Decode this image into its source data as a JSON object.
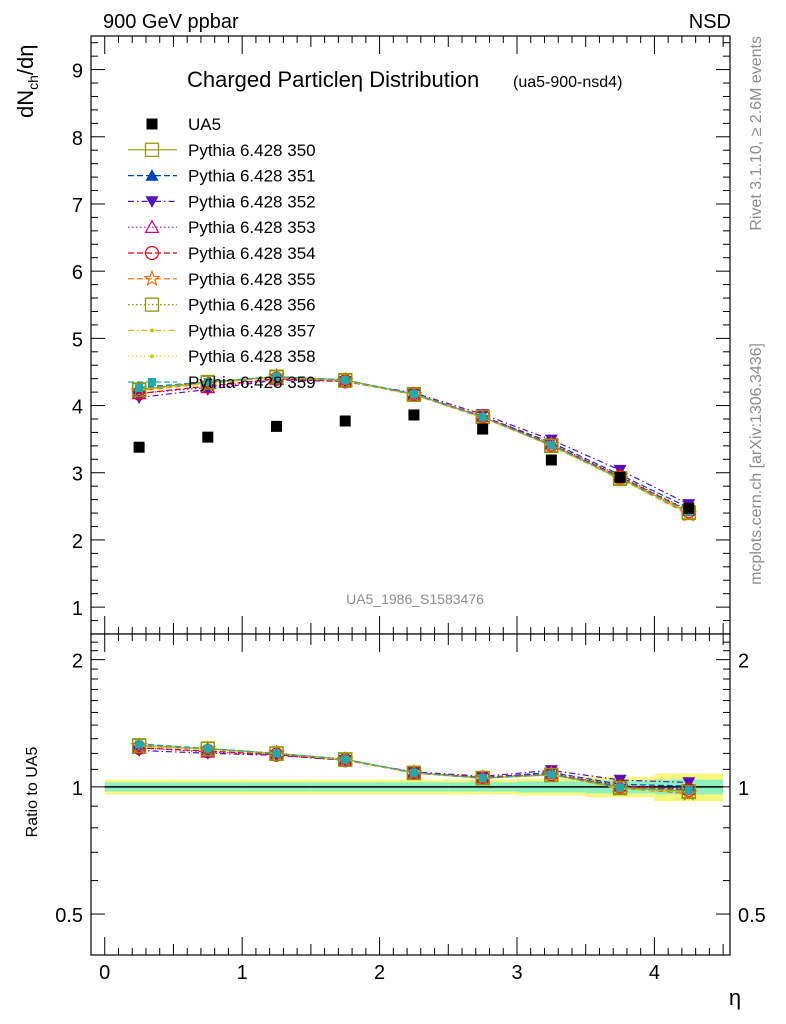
{
  "header": {
    "left": "900 GeV ppbar",
    "right": "NSD"
  },
  "side": {
    "rivet": "Rivet 3.1.10, ≥ 2.6M events",
    "mcplots": "mcplots.cern.ch [arXiv:1306.3436]"
  },
  "title": {
    "main": "Charged Particleη Distribution",
    "sub": "(ua5-900-nsd4)"
  },
  "analysis_id": "UA5_1986_S1583476",
  "colors": {
    "data": "#000000",
    "band_inner": "#8ff0c0",
    "band_outer": "#f7f77a"
  },
  "chart_data": [
    {
      "type": "scatter",
      "panel": "main",
      "xlabel": "η",
      "ylabel": "dN_ch/dη",
      "xlim": [
        -0.1,
        4.55
      ],
      "ylim": [
        0.6,
        9.5
      ],
      "yticks": [
        1,
        2,
        3,
        4,
        5,
        6,
        7,
        8,
        9
      ],
      "xticks": [
        0,
        1,
        2,
        3,
        4
      ],
      "x": [
        0.25,
        0.75,
        1.25,
        1.75,
        2.25,
        2.75,
        3.25,
        3.75,
        4.25
      ],
      "legend_position": "top-left",
      "series": [
        {
          "name": "UA5",
          "marker": "filled-square",
          "line": "none",
          "color": "#000000",
          "values": [
            3.38,
            3.53,
            3.69,
            3.77,
            3.86,
            3.65,
            3.19,
            2.93,
            2.47
          ]
        },
        {
          "name": "Pythia 6.428 350",
          "marker": "open-square",
          "line": "solid",
          "color": "#999900",
          "values": [
            4.24,
            4.35,
            4.43,
            4.38,
            4.17,
            3.83,
            3.41,
            2.92,
            2.41
          ]
        },
        {
          "name": "Pythia 6.428 351",
          "marker": "filled-triangle-up",
          "line": "dashed",
          "color": "#0044bb",
          "values": [
            4.27,
            4.35,
            4.43,
            4.38,
            4.17,
            3.84,
            3.45,
            2.97,
            2.48
          ]
        },
        {
          "name": "Pythia 6.428 352",
          "marker": "filled-triangle-down",
          "line": "dashdot",
          "color": "#5511bb",
          "values": [
            4.12,
            4.24,
            4.38,
            4.36,
            4.19,
            3.87,
            3.49,
            3.04,
            2.53
          ]
        },
        {
          "name": "Pythia 6.428 353",
          "marker": "open-triangle-up",
          "line": "dotted",
          "color": "#cc0088",
          "values": [
            4.18,
            4.27,
            4.39,
            4.36,
            4.17,
            3.84,
            3.43,
            2.95,
            2.44
          ]
        },
        {
          "name": "Pythia 6.428 354",
          "marker": "open-circle",
          "line": "dashed",
          "color": "#dd0011",
          "values": [
            4.18,
            4.29,
            4.4,
            4.36,
            4.17,
            3.84,
            3.42,
            2.94,
            2.43
          ]
        },
        {
          "name": "Pythia 6.428 355",
          "marker": "open-star",
          "line": "dashed",
          "color": "#ee6600",
          "values": [
            4.22,
            4.33,
            4.43,
            4.37,
            4.16,
            3.82,
            3.41,
            2.91,
            2.38
          ]
        },
        {
          "name": "Pythia 6.428 356",
          "marker": "open-square",
          "line": "dotted",
          "color": "#889900",
          "values": [
            4.23,
            4.34,
            4.42,
            4.37,
            4.16,
            3.83,
            3.4,
            2.91,
            2.4
          ]
        },
        {
          "name": "Pythia 6.428 357",
          "marker": "dot",
          "line": "dashdot",
          "color": "#ddbb00",
          "values": [
            4.23,
            4.33,
            4.42,
            4.37,
            4.16,
            3.82,
            3.4,
            2.9,
            2.4
          ]
        },
        {
          "name": "Pythia 6.428 358",
          "marker": "dot",
          "line": "dotted",
          "color": "#cccc00",
          "values": [
            4.25,
            4.34,
            4.43,
            4.38,
            4.17,
            3.83,
            3.41,
            2.92,
            2.41
          ]
        },
        {
          "name": "Pythia 6.428 359",
          "marker": "filled-square",
          "line": "dashed",
          "color": "#22aaaa",
          "values": [
            4.26,
            4.35,
            4.43,
            4.38,
            4.17,
            3.83,
            3.41,
            2.92,
            2.42
          ]
        }
      ]
    },
    {
      "type": "line",
      "panel": "ratio",
      "xlabel": "η",
      "ylabel": "Ratio to UA5",
      "xlim": [
        -0.1,
        4.55
      ],
      "ylim": [
        0.4,
        2.3
      ],
      "scale": "log",
      "yticks": [
        0.5,
        1,
        2
      ],
      "x": [
        0.25,
        0.75,
        1.25,
        1.75,
        2.25,
        2.75,
        3.25,
        3.75,
        4.25
      ],
      "reference_band": {
        "x_edges": [
          0.0,
          0.5,
          1.0,
          1.5,
          2.0,
          2.5,
          3.0,
          3.5,
          4.0,
          4.5
        ],
        "inner": [
          0.025,
          0.025,
          0.025,
          0.025,
          0.025,
          0.025,
          0.03,
          0.035,
          0.04
        ],
        "outer": [
          0.04,
          0.04,
          0.04,
          0.04,
          0.04,
          0.04,
          0.045,
          0.055,
          0.075
        ]
      },
      "series": [
        {
          "name": "Pythia 6.428 350",
          "values": [
            1.254,
            1.232,
            1.2,
            1.162,
            1.08,
            1.049,
            1.069,
            0.997,
            0.976
          ]
        },
        {
          "name": "Pythia 6.428 351",
          "values": [
            1.263,
            1.232,
            1.2,
            1.162,
            1.08,
            1.052,
            1.082,
            1.014,
            1.004
          ]
        },
        {
          "name": "Pythia 6.428 352",
          "values": [
            1.219,
            1.201,
            1.187,
            1.156,
            1.085,
            1.06,
            1.094,
            1.038,
            1.024
          ]
        },
        {
          "name": "Pythia 6.428 353",
          "values": [
            1.237,
            1.21,
            1.19,
            1.156,
            1.08,
            1.052,
            1.075,
            1.007,
            0.988
          ]
        },
        {
          "name": "Pythia 6.428 354",
          "values": [
            1.237,
            1.215,
            1.192,
            1.156,
            1.08,
            1.052,
            1.072,
            1.003,
            0.984
          ]
        },
        {
          "name": "Pythia 6.428 355",
          "values": [
            1.249,
            1.227,
            1.2,
            1.159,
            1.078,
            1.047,
            1.069,
            0.993,
            0.964
          ]
        },
        {
          "name": "Pythia 6.428 356",
          "values": [
            1.251,
            1.229,
            1.198,
            1.159,
            1.078,
            1.049,
            1.066,
            0.993,
            0.972
          ]
        },
        {
          "name": "Pythia 6.428 357",
          "values": [
            1.251,
            1.227,
            1.198,
            1.159,
            1.078,
            1.047,
            1.066,
            0.99,
            0.972
          ]
        },
        {
          "name": "Pythia 6.428 358",
          "values": [
            1.257,
            1.229,
            1.2,
            1.162,
            1.08,
            1.049,
            1.069,
            0.997,
            0.976
          ]
        },
        {
          "name": "Pythia 6.428 359",
          "values": [
            1.26,
            1.232,
            1.2,
            1.162,
            1.08,
            1.049,
            1.069,
            0.997,
            0.98
          ]
        }
      ]
    }
  ]
}
